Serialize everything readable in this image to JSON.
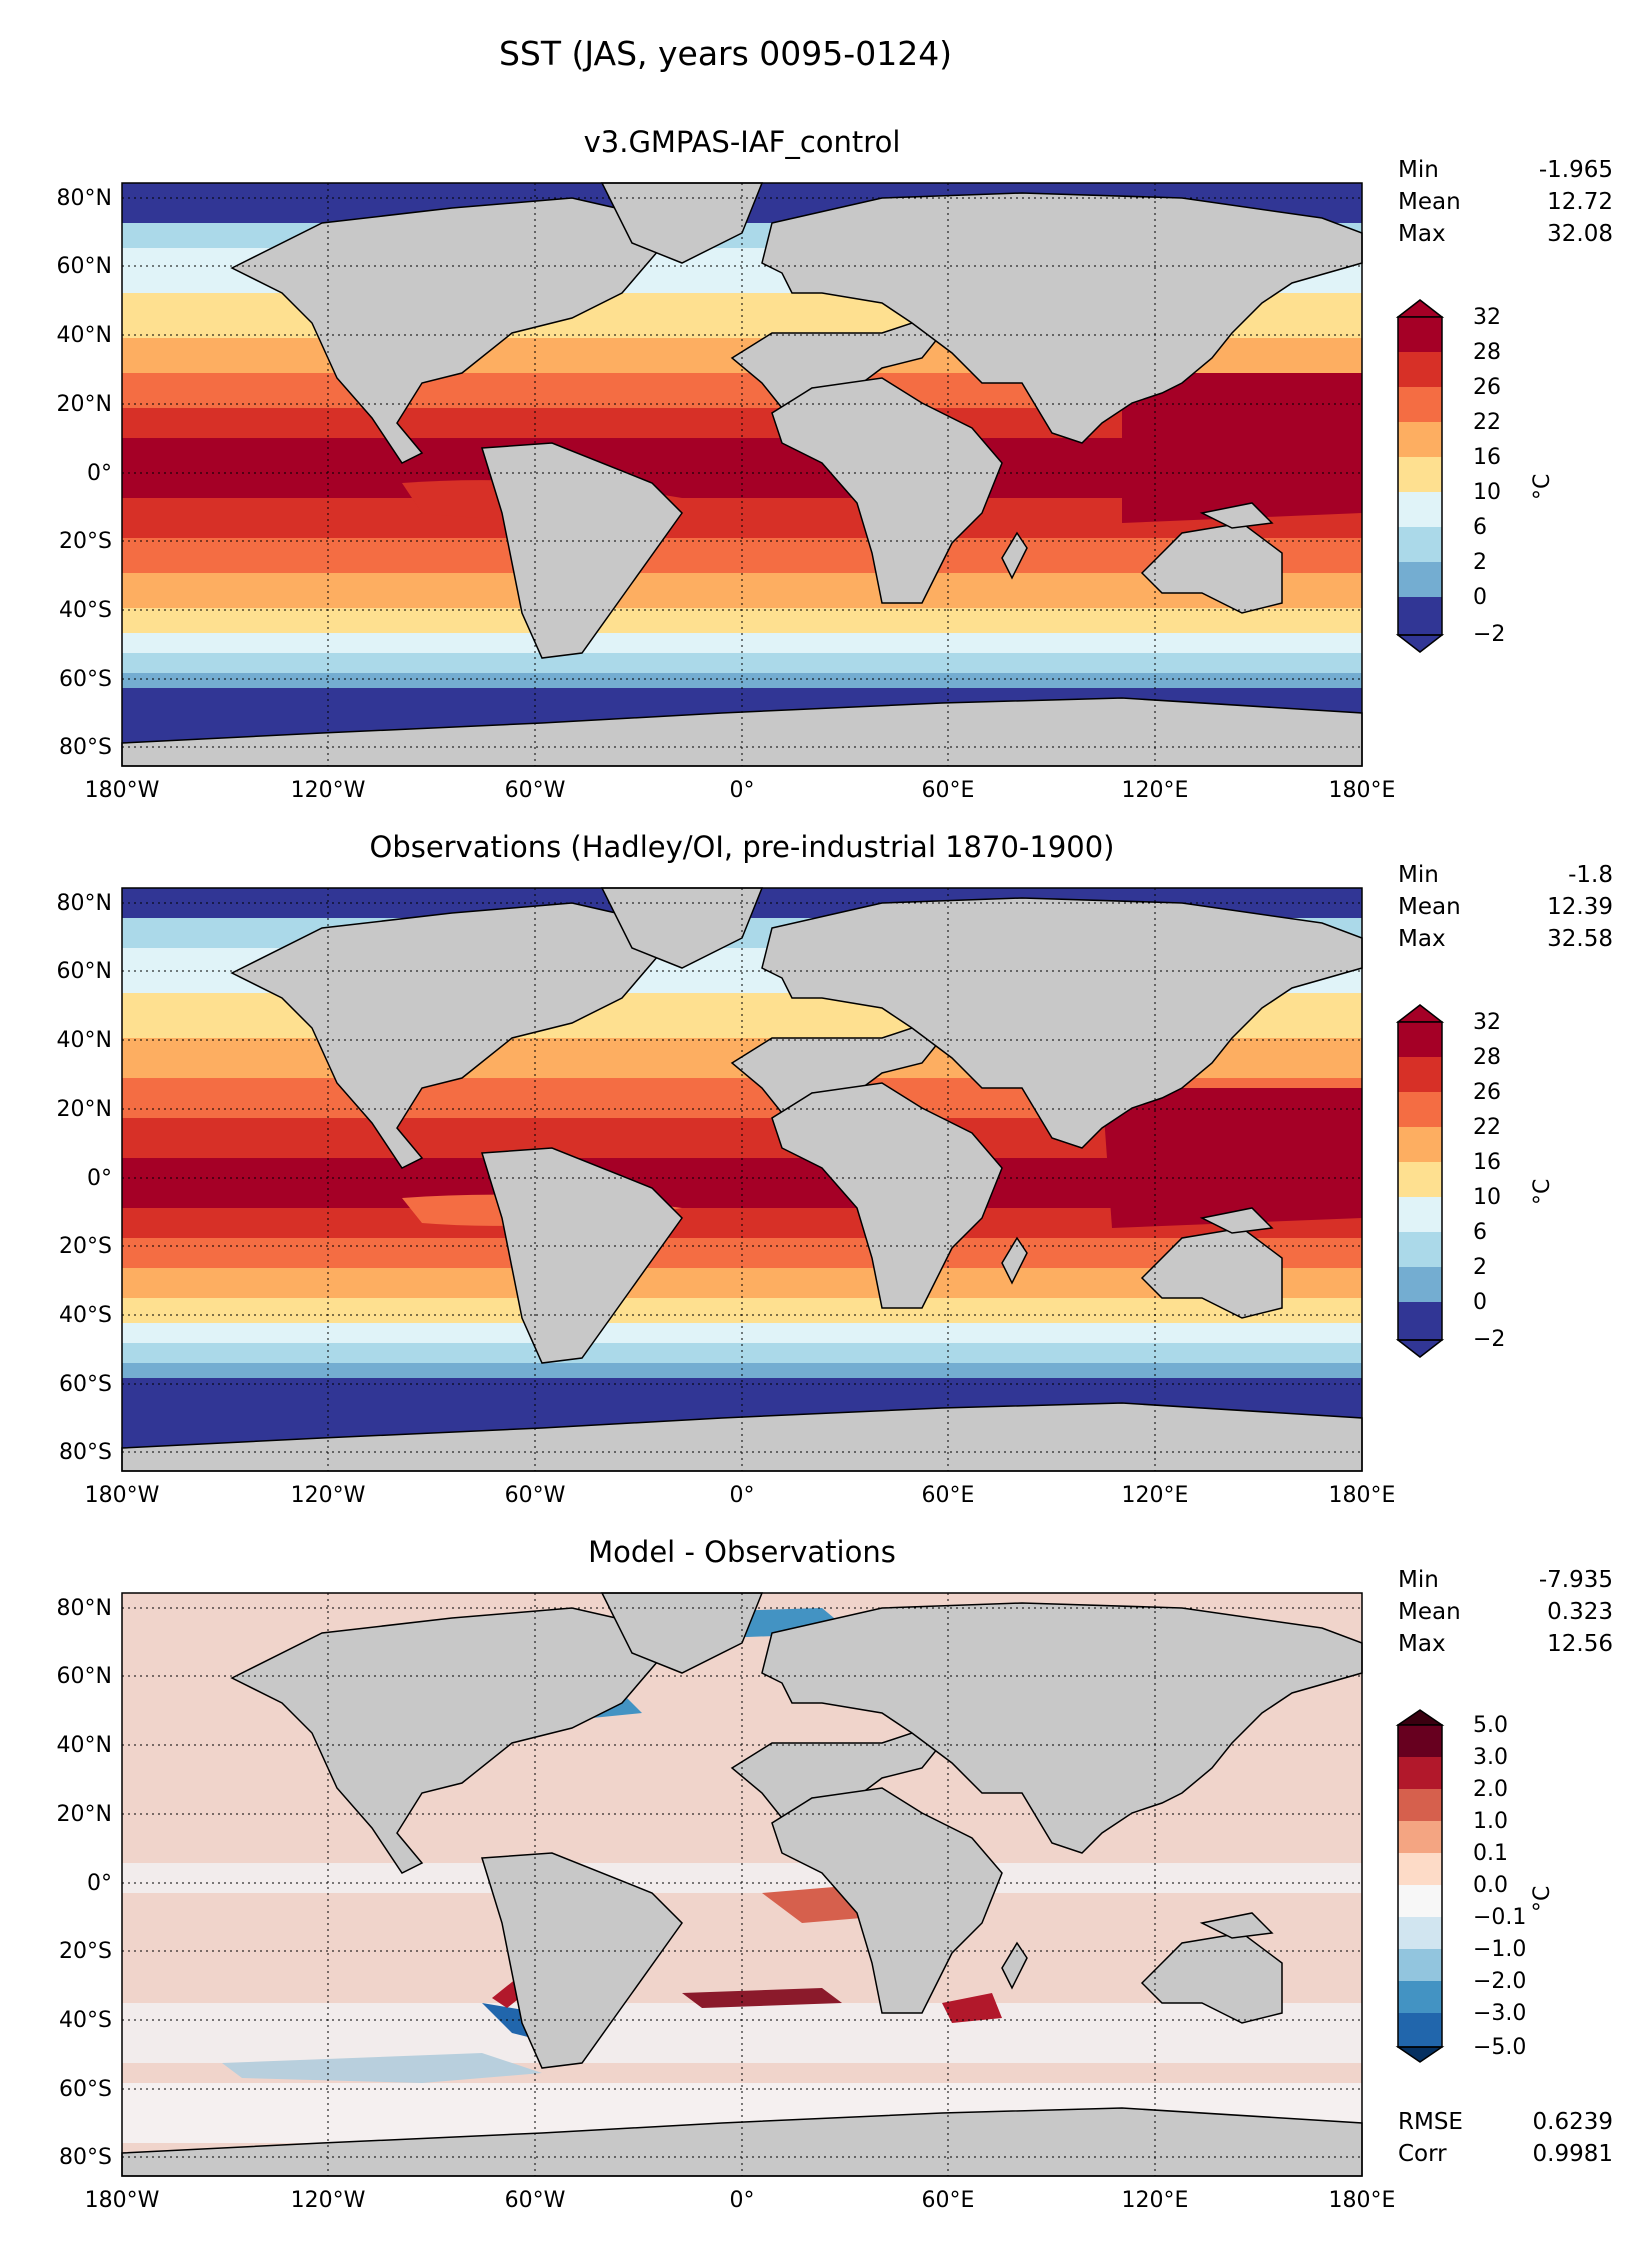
{
  "suptitle": "SST (JAS, years 0095-0124)",
  "x_ticks": [
    "180°W",
    "120°W",
    "60°W",
    "0°",
    "60°E",
    "120°E",
    "180°E"
  ],
  "y_ticks": [
    "80°N",
    "60°N",
    "40°N",
    "20°N",
    "0°",
    "20°S",
    "40°S",
    "60°S",
    "80°S"
  ],
  "colors": {
    "land": "#c8c8c8"
  },
  "panels": [
    {
      "title": "v3.GMPAS-IAF_control",
      "stats": [
        {
          "label": "Min",
          "value": "-1.965"
        },
        {
          "label": "Mean",
          "value": "12.72"
        },
        {
          "label": "Max",
          "value": "32.08"
        }
      ],
      "colorbar": {
        "levels": [
          "32",
          "28",
          "26",
          "22",
          "16",
          "10",
          "6",
          "2",
          "0",
          "−2"
        ],
        "colors": [
          "#a50026",
          "#d73027",
          "#f46d43",
          "#fdae61",
          "#fee090",
          "#e0f3f8",
          "#abd9e9",
          "#74add1",
          "#4575b4",
          "#313695"
        ],
        "unit": "°C"
      }
    },
    {
      "title": "Observations (Hadley/OI, pre-industrial 1870-1900)",
      "stats": [
        {
          "label": "Min",
          "value": "-1.8"
        },
        {
          "label": "Mean",
          "value": "12.39"
        },
        {
          "label": "Max",
          "value": "32.58"
        }
      ],
      "colorbar": {
        "levels": [
          "32",
          "28",
          "26",
          "22",
          "16",
          "10",
          "6",
          "2",
          "0",
          "−2"
        ],
        "colors": [
          "#a50026",
          "#d73027",
          "#f46d43",
          "#fdae61",
          "#fee090",
          "#e0f3f8",
          "#abd9e9",
          "#74add1",
          "#4575b4",
          "#313695"
        ],
        "unit": "°C"
      }
    },
    {
      "title": "Model - Observations",
      "stats": [
        {
          "label": "Min",
          "value": "-7.935"
        },
        {
          "label": "Mean",
          "value": "0.323"
        },
        {
          "label": "Max",
          "value": "12.56"
        }
      ],
      "extra_stats": [
        {
          "label": "RMSE",
          "value": "0.6239"
        },
        {
          "label": "Corr",
          "value": "0.9981"
        }
      ],
      "colorbar": {
        "levels": [
          "5.0",
          "3.0",
          "2.0",
          "1.0",
          "0.1",
          "0.0",
          "−0.1",
          "−1.0",
          "−2.0",
          "−3.0",
          "−5.0"
        ],
        "colors": [
          "#67001f",
          "#b2182b",
          "#d6604d",
          "#f4a582",
          "#fddbc7",
          "#f7f7f7",
          "#d1e5f0",
          "#92c5de",
          "#4393c3",
          "#2166ac",
          "#053061"
        ],
        "unit": "°C"
      }
    }
  ]
}
